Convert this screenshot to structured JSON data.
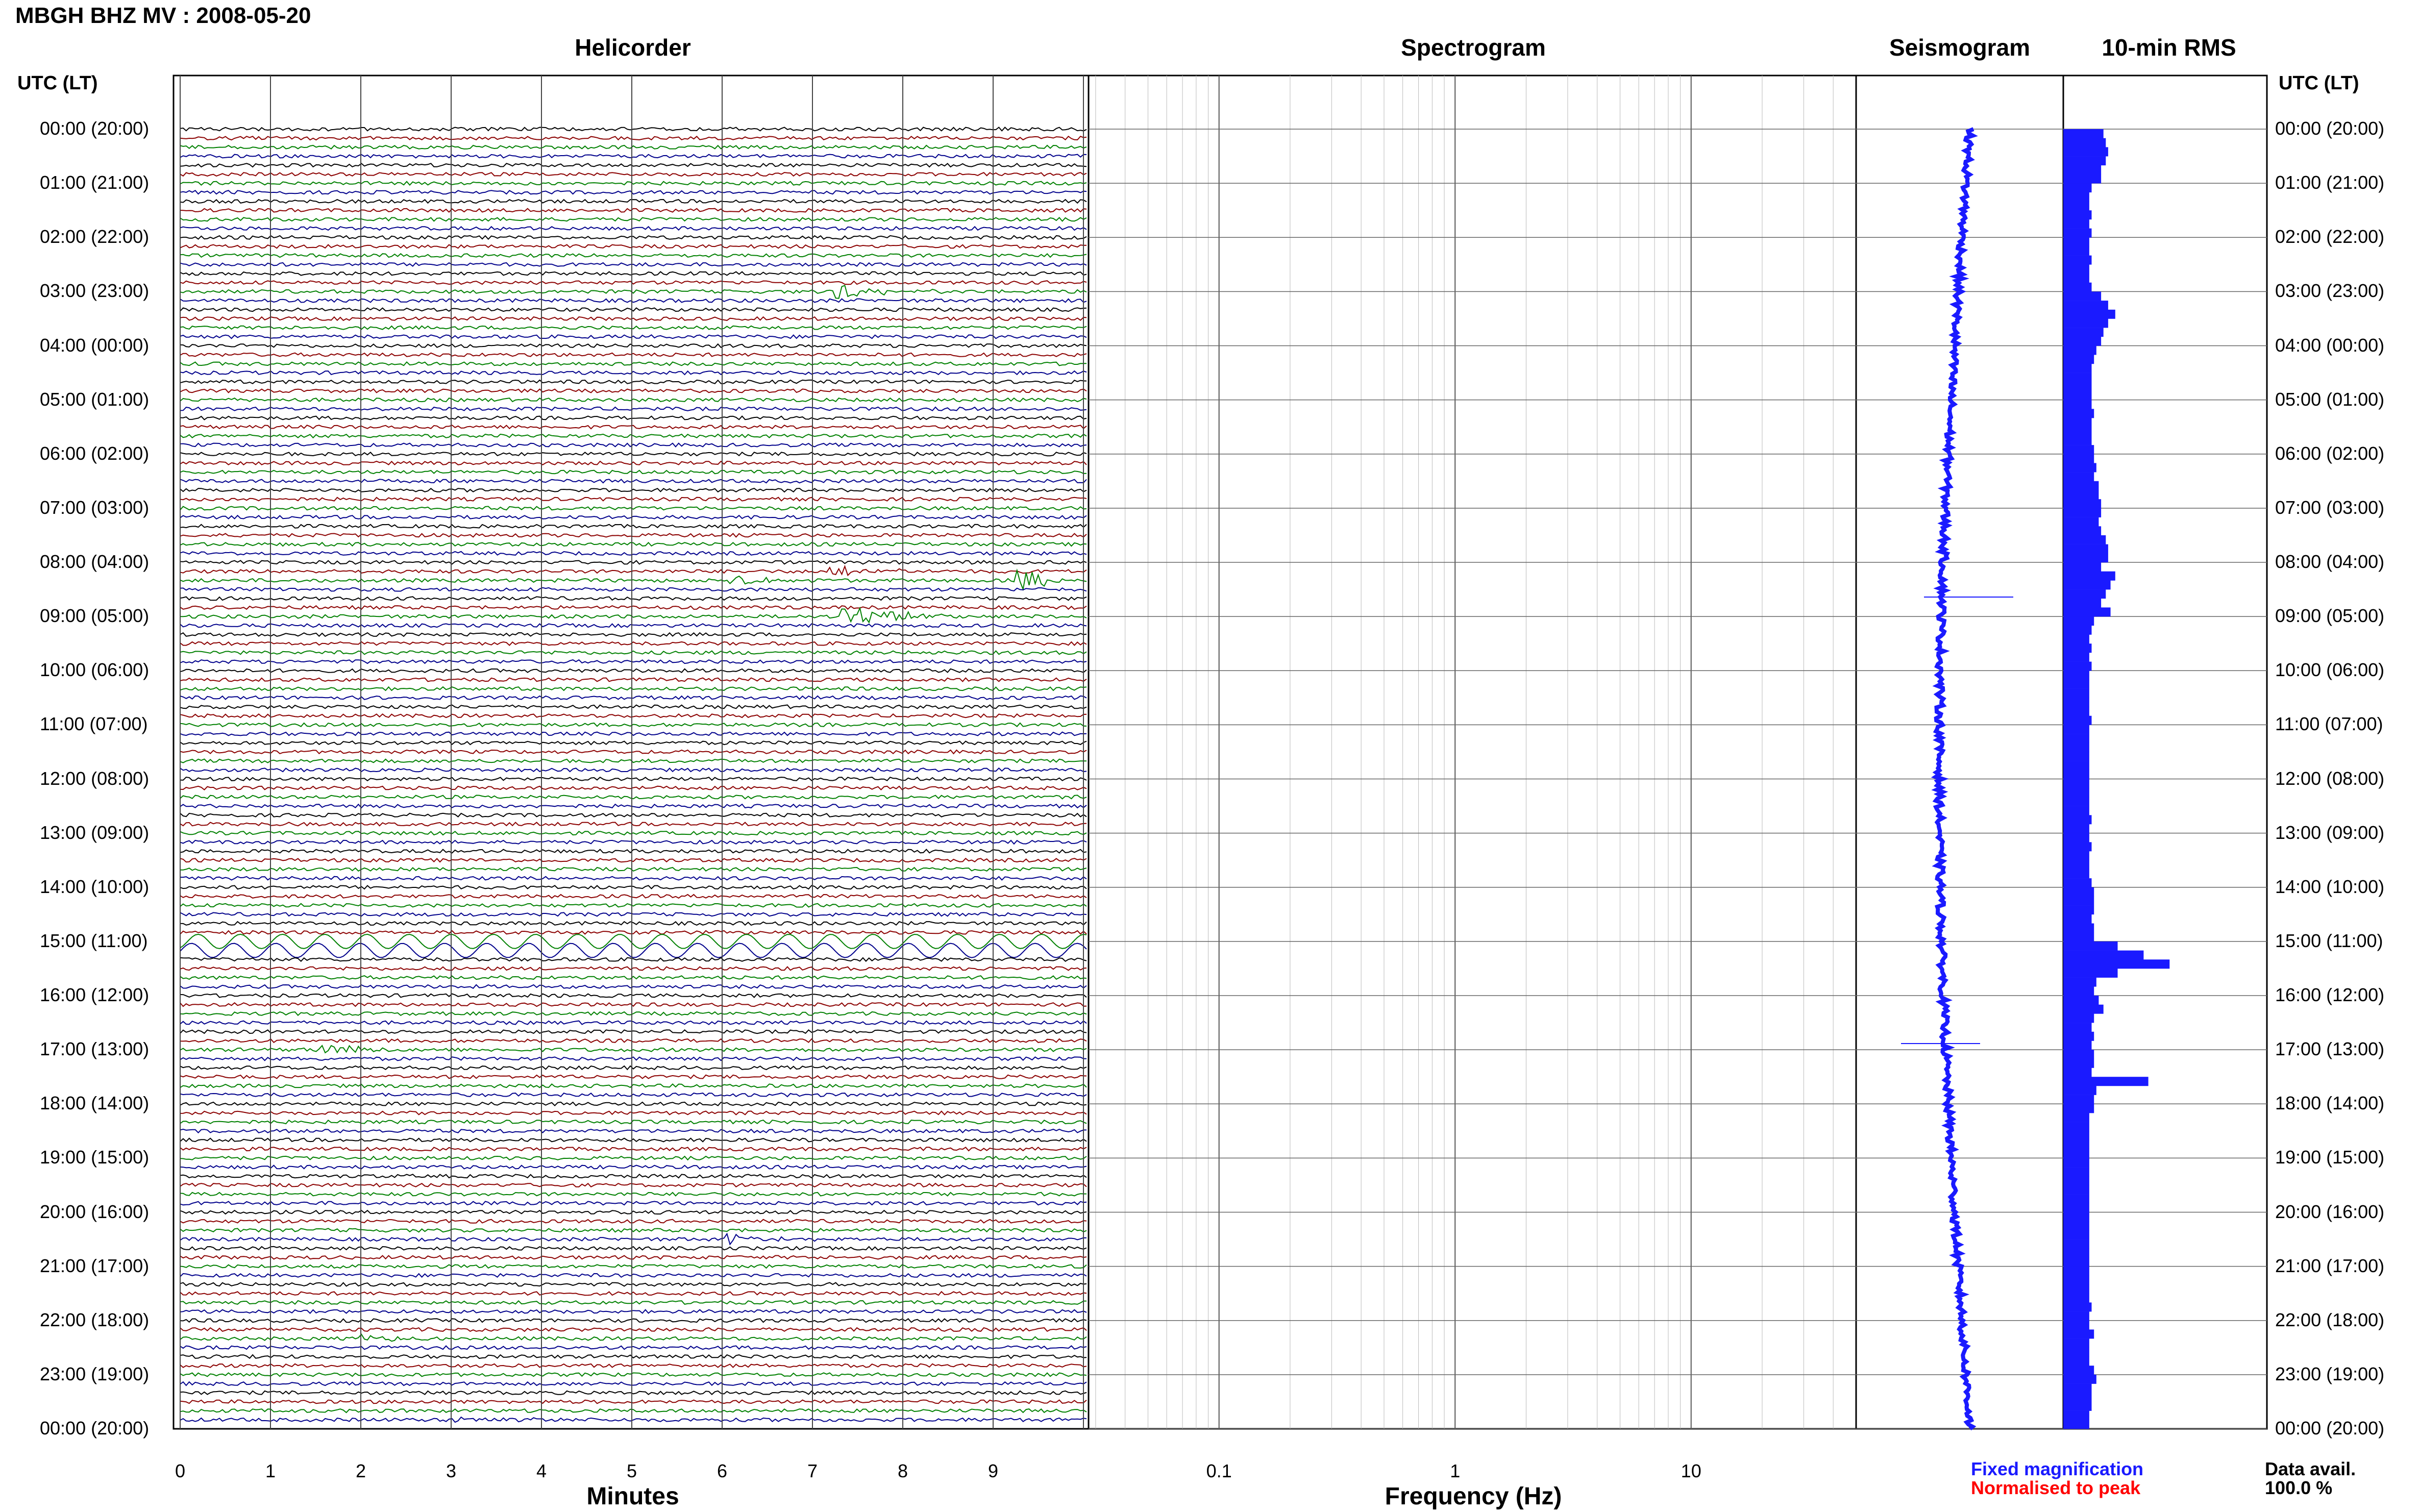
{
  "title": "MBGH BHZ MV : 2008-05-20",
  "panels": {
    "helicorder": "Helicorder",
    "spectrogram": "Spectrogram",
    "seismogram": "Seismogram",
    "rms": "10-min RMS"
  },
  "axis_labels": {
    "left_top": "UTC (LT)",
    "right_top": "UTC (LT)",
    "minutes": "Minutes",
    "frequency": "Frequency (Hz)"
  },
  "legend": {
    "fixed": "Fixed magnification",
    "normalised": "Normalised to peak",
    "data_avail_label": "Data avail.",
    "data_avail_value": "100.0 %"
  },
  "colors": {
    "fixed": "#1a1aff",
    "normalised": "#ff0000",
    "trace_cycle": [
      "#000000",
      "#8b0000",
      "#008000",
      "#00008b"
    ],
    "rms_bar": "#1a1aff"
  },
  "chart_data": {
    "type": "helicorder-spectrogram",
    "time_labels": [
      "00:00 (20:00)",
      "01:00 (21:00)",
      "02:00 (22:00)",
      "03:00 (23:00)",
      "04:00 (00:00)",
      "05:00 (01:00)",
      "06:00 (02:00)",
      "07:00 (03:00)",
      "08:00 (04:00)",
      "09:00 (05:00)",
      "10:00 (06:00)",
      "11:00 (07:00)",
      "12:00 (08:00)",
      "13:00 (09:00)",
      "14:00 (10:00)",
      "15:00 (11:00)",
      "16:00 (12:00)",
      "17:00 (13:00)",
      "18:00 (14:00)",
      "19:00 (15:00)",
      "20:00 (16:00)",
      "21:00 (17:00)",
      "22:00 (18:00)",
      "23:00 (19:00)",
      "00:00 (20:00)"
    ],
    "minutes_ticks": [
      "0",
      "1",
      "2",
      "3",
      "4",
      "5",
      "6",
      "7",
      "8",
      "9"
    ],
    "freq_ticks": [
      "0.1",
      "1",
      "10"
    ],
    "rms_10min": [
      1.7,
      1.8,
      1.9,
      1.8,
      1.6,
      1.6,
      1.2,
      1.1,
      1.1,
      1.2,
      1.1,
      1.2,
      1.1,
      1.1,
      1.2,
      1.1,
      1.1,
      1.2,
      1.6,
      1.9,
      2.2,
      1.9,
      1.7,
      1.6,
      1.4,
      1.3,
      1.2,
      1.2,
      1.2,
      1.2,
      1.2,
      1.3,
      1.2,
      1.2,
      1.2,
      1.3,
      1.3,
      1.4,
      1.3,
      1.5,
      1.5,
      1.6,
      1.6,
      1.5,
      1.6,
      1.8,
      1.9,
      1.9,
      1.6,
      2.2,
      2.0,
      1.8,
      1.6,
      2.0,
      1.3,
      1.2,
      1.1,
      1.2,
      1.1,
      1.2,
      1.1,
      1.1,
      1.1,
      1.1,
      1.1,
      1.2,
      1.1,
      1.1,
      1.1,
      1.1,
      1.1,
      1.1,
      1.1,
      1.1,
      1.1,
      1.1,
      1.2,
      1.1,
      1.1,
      1.2,
      1.1,
      1.1,
      1.1,
      1.2,
      1.3,
      1.3,
      1.3,
      1.2,
      1.3,
      1.3,
      2.3,
      3.4,
      4.5,
      2.3,
      1.4,
      1.3,
      1.5,
      1.7,
      1.3,
      1.2,
      1.3,
      1.2,
      1.3,
      1.3,
      1.2,
      3.6,
      1.4,
      1.3,
      1.3,
      1.1,
      1.1,
      1.1,
      1.1,
      1.1,
      1.1,
      1.1,
      1.1,
      1.1,
      1.1,
      1.1,
      1.1,
      1.1,
      1.1,
      1.1,
      1.1,
      1.1,
      1.1,
      1.1,
      1.1,
      1.1,
      1.2,
      1.1,
      1.1,
      1.3,
      1.1,
      1.1,
      1.1,
      1.3,
      1.4,
      1.2,
      1.2,
      1.2,
      1.1,
      1.1
    ]
  }
}
